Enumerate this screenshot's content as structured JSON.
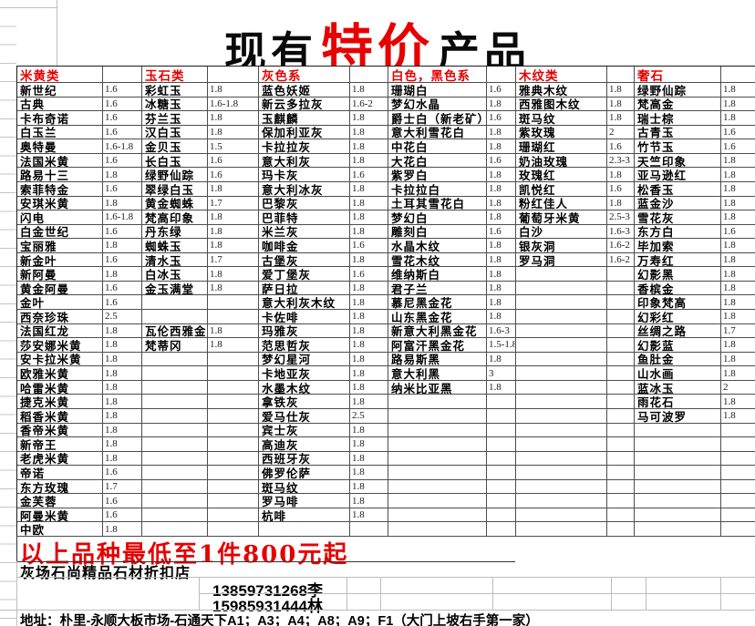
{
  "title": {
    "prefix": "现有",
    "highlight": "特价",
    "suffix": "产品"
  },
  "colors": {
    "accent": "#e60000",
    "text": "#000000",
    "grid": "#4d4d4d"
  },
  "table": {
    "row_count": 32,
    "columns": [
      {
        "header": "米黄类",
        "items": [
          [
            "新世纪",
            "1.6"
          ],
          [
            "古典",
            "1.6"
          ],
          [
            "卡布奇诺",
            "1.6"
          ],
          [
            "白玉兰",
            "1.6"
          ],
          [
            "奥特曼",
            "1.6-1.8"
          ],
          [
            "法国米黄",
            "1.6"
          ],
          [
            "路易十三",
            "1.8"
          ],
          [
            "索菲特金",
            "1.6"
          ],
          [
            "安琪米黄",
            "1.8"
          ],
          [
            "闪电",
            "1.6-1.8"
          ],
          [
            "白金世纪",
            "1.6"
          ],
          [
            "宝丽雅",
            "1.8"
          ],
          [
            "新金叶",
            "1.6"
          ],
          [
            "新阿曼",
            "1.8"
          ],
          [
            "黄金阿曼",
            "1.6"
          ],
          [
            "金叶",
            "1.6"
          ],
          [
            "西奈珍珠",
            "2.5"
          ],
          [
            "法国红龙",
            "1.8"
          ],
          [
            "莎安娜米黄",
            "1.8"
          ],
          [
            "安卡拉米黄",
            "1.8"
          ],
          [
            "欧雅米黄",
            "1.8"
          ],
          [
            "哈雷米黄",
            "1.8"
          ],
          [
            "捷克米黄",
            "1.8"
          ],
          [
            "稻香米黄",
            "1.8"
          ],
          [
            "香帝米黄",
            "1.8"
          ],
          [
            "新帝王",
            "1.8"
          ],
          [
            "老虎米黄",
            "1.8"
          ],
          [
            "帝诺",
            "1.6"
          ],
          [
            "东方玫瑰",
            "1.7"
          ],
          [
            "金芙蓉",
            "1.6"
          ],
          [
            "阿曼米黄",
            "1.6"
          ],
          [
            "中欧",
            "1.8"
          ]
        ]
      },
      {
        "header": "玉石类",
        "items": [
          [
            "彩虹玉",
            "1.8"
          ],
          [
            "冰糖玉",
            "1.6-1.8"
          ],
          [
            "芬兰玉",
            "1.8"
          ],
          [
            "汉白玉",
            "1.8"
          ],
          [
            "金贝玉",
            "1.5"
          ],
          [
            "长白玉",
            "1.6"
          ],
          [
            "绿野仙踪",
            "1.6"
          ],
          [
            "翠绿白玉",
            "1.8"
          ],
          [
            "黄金蜘蛛",
            "1.7"
          ],
          [
            "梵高印象",
            "1.8"
          ],
          [
            "丹东绿",
            "1.8"
          ],
          [
            "蜘蛛玉",
            "1.8"
          ],
          [
            "清水玉",
            "1.7"
          ],
          [
            "白冰玉",
            "1.8"
          ],
          [
            "金玉满堂",
            "1.8"
          ],
          [
            "",
            ""
          ],
          [
            "",
            ""
          ],
          [
            "瓦伦西雅金",
            "1.8"
          ],
          [
            "梵蒂冈",
            "1.8"
          ]
        ]
      },
      {
        "header": "灰色系",
        "items": [
          [
            "蓝色妖姬",
            "1.8"
          ],
          [
            "新云多拉灰",
            "1.6-2"
          ],
          [
            "玉麒麟",
            "1.8"
          ],
          [
            "保加利亚灰",
            "1.8"
          ],
          [
            "卡拉拉灰",
            "1.8"
          ],
          [
            "意大利灰",
            "1.8"
          ],
          [
            "玛卡灰",
            "1.6"
          ],
          [
            "意大利冰灰",
            "1.8"
          ],
          [
            "巴黎灰",
            "1.8"
          ],
          [
            "巴菲特",
            "1.8"
          ],
          [
            "米兰灰",
            "1.8"
          ],
          [
            "咖啡金",
            "1.6"
          ],
          [
            "古堡灰",
            "1.8"
          ],
          [
            "爱丁堡灰",
            "1.6"
          ],
          [
            "萨日拉",
            "1.8"
          ],
          [
            "意大利灰木纹",
            "1.8"
          ],
          [
            "卡佐啡",
            "1.8"
          ],
          [
            "玛雅灰",
            "1.8"
          ],
          [
            "范思哲灰",
            "1.8"
          ],
          [
            "梦幻星河",
            "1.8"
          ],
          [
            "卡地亚灰",
            "1.8"
          ],
          [
            "水墨木纹",
            "1.8"
          ],
          [
            "拿铁灰",
            "1.8"
          ],
          [
            "爱马仕灰",
            "2.5"
          ],
          [
            "宾士灰",
            "1.8"
          ],
          [
            "高迪灰",
            "1.8"
          ],
          [
            "西班牙灰",
            "1.8"
          ],
          [
            "佛罗伦萨",
            "1.8"
          ],
          [
            "斑马纹",
            "1.8"
          ],
          [
            "罗马啡",
            "1.8"
          ],
          [
            "杭啡",
            "1.8"
          ]
        ]
      },
      {
        "header": "白色，黑色系",
        "items": [
          [
            "珊瑚白",
            "1.6"
          ],
          [
            "梦幻水晶",
            "1.8"
          ],
          [
            "爵士白（新老矿）",
            "1.6"
          ],
          [
            "意大利雪花白",
            "1.8"
          ],
          [
            "中花白",
            "1.8"
          ],
          [
            "大花白",
            "1.6"
          ],
          [
            "紫罗白",
            "1.8"
          ],
          [
            "卡拉拉白",
            "1.8"
          ],
          [
            "土耳其雪花白",
            "1.8"
          ],
          [
            "梦幻白",
            "1.8"
          ],
          [
            "雕刻白",
            "1.6"
          ],
          [
            "水晶木纹",
            "1.8"
          ],
          [
            "雪花木纹",
            "1.8"
          ],
          [
            "维纳斯白",
            "1.8"
          ],
          [
            "君子兰",
            "1.8"
          ],
          [
            "慕尼黑金花",
            "1.8"
          ],
          [
            "山东黑金花",
            "1.8"
          ],
          [
            "新意大利黑金花",
            "1.6-3"
          ],
          [
            "阿富汗黑金花",
            "1.5-1.8"
          ],
          [
            "路易斯黑",
            "1.8"
          ],
          [
            "意大利黑",
            "3"
          ],
          [
            "纳米比亚黑",
            "1.8"
          ]
        ]
      },
      {
        "header": "木纹类",
        "items": [
          [
            "雅典木纹",
            "1.8"
          ],
          [
            "西雅图木纹",
            "1.8"
          ],
          [
            "斑马纹",
            "1.8"
          ],
          [
            "紫玫瑰",
            "2"
          ],
          [
            "珊瑚红",
            "1.6"
          ],
          [
            "奶油玫瑰",
            "2.3-3"
          ],
          [
            "玫瑰红",
            "1.8"
          ],
          [
            "凯悦红",
            "1.6"
          ],
          [
            "粉红佳人",
            "1.8"
          ],
          [
            "葡萄牙米黄",
            "2.5-3"
          ],
          [
            "白沙",
            "1.6-3"
          ],
          [
            "银灰洞",
            "1.6-2"
          ],
          [
            "罗马洞",
            "1.6-2"
          ]
        ]
      },
      {
        "header": "奢石",
        "items": [
          [
            "绿野仙踪",
            "1.8"
          ],
          [
            "梵高金",
            "1.8"
          ],
          [
            "瑞士棕",
            "1.8"
          ],
          [
            "古青玉",
            "1.6"
          ],
          [
            "竹节玉",
            "1.6"
          ],
          [
            "天竺印象",
            "1.8"
          ],
          [
            "亚马逊红",
            "1.8"
          ],
          [
            "松香玉",
            "1.8"
          ],
          [
            "蓝金沙",
            "1.8"
          ],
          [
            "雪花灰",
            "1.8"
          ],
          [
            "东方白",
            "1.6"
          ],
          [
            "毕加索",
            "1.8"
          ],
          [
            "万寿红",
            "1.8"
          ],
          [
            "幻影黑",
            "1.8"
          ],
          [
            "香槟金",
            "1.8"
          ],
          [
            "印象梵高",
            "1.8"
          ],
          [
            "幻彩红",
            "1.8"
          ],
          [
            "丝绸之路",
            "1.7"
          ],
          [
            "幻影蓝",
            "1.8"
          ],
          [
            "鱼肚金",
            "1.8"
          ],
          [
            "山水画",
            "1.8"
          ],
          [
            "蓝冰玉",
            "2"
          ],
          [
            "雨花石",
            "1.8"
          ],
          [
            "马可波罗",
            "1.8"
          ]
        ]
      }
    ]
  },
  "footer": {
    "promo": "以上品种最低至1件800元起",
    "shop": "灰场石尚精品石材折扣店",
    "phones": [
      "13859731268李",
      "15985931444林"
    ],
    "address": "地址：朴里-永顺大板市场-石通天下A1；A3；A4；A8；A9；F1（大门上坡右手第一家）"
  }
}
